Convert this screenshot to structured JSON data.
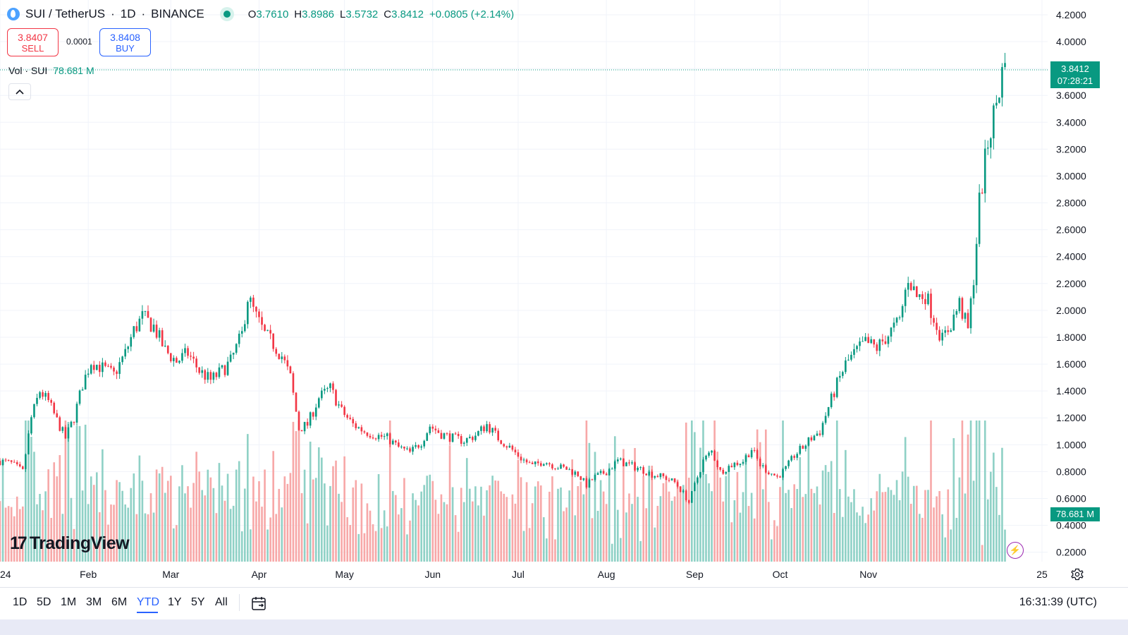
{
  "header": {
    "symbol": "SUI / TetherUS",
    "interval": "1D",
    "exchange": "BINANCE",
    "open": "3.7610",
    "high": "3.8986",
    "low": "3.5732",
    "close": "3.8412",
    "change": "+0.0805 (+2.14%)"
  },
  "trade": {
    "sell_price": "3.8407",
    "sell_label": "SELL",
    "spread": "0.0001",
    "buy_price": "3.8408",
    "buy_label": "BUY"
  },
  "volume": {
    "label": "Vol · SUI",
    "value": "78.681 M"
  },
  "price_tag": {
    "price": "3.8412",
    "countdown": "07:28:21"
  },
  "brand": "TradingView",
  "toolbar": {
    "ranges": [
      "1D",
      "5D",
      "1M",
      "3M",
      "6M",
      "YTD",
      "1Y",
      "5Y",
      "All"
    ],
    "active_range": "YTD",
    "time": "16:31:39 (UTC)"
  },
  "colors": {
    "up": "#089981",
    "down": "#f23645",
    "vol_up": "#8fd1c6",
    "vol_down": "#f7a8a8",
    "accent": "#2962ff"
  },
  "chart_data": {
    "type": "candlestick",
    "y_axis": {
      "side": "right",
      "ylim": [
        0.13,
        4.31
      ],
      "ticks": [
        "4.2000",
        "4.0000",
        "3.8000",
        "3.6000",
        "3.4000",
        "3.2000",
        "3.0000",
        "2.8000",
        "2.6000",
        "2.4000",
        "2.2000",
        "2.0000",
        "1.8000",
        "1.6000",
        "1.4000",
        "1.2000",
        "1.0000",
        "0.8000",
        "0.6000",
        "0.4000",
        "0.2000"
      ]
    },
    "x_axis": {
      "labels": [
        "2024",
        "Feb",
        "Mar",
        "Apr",
        "May",
        "Jun",
        "Jul",
        "Aug",
        "Sep",
        "Oct",
        "Nov",
        "25"
      ],
      "range": [
        "2024-01-01",
        "2025-01-01"
      ]
    },
    "grid": true,
    "last_price": 3.8412,
    "last_volume": "78.681 M",
    "price_path": [
      [
        "01-01",
        0.88
      ],
      [
        "01-05",
        0.86
      ],
      [
        "01-09",
        0.8
      ],
      [
        "01-12",
        1.2
      ],
      [
        "01-15",
        1.4
      ],
      [
        "01-18",
        1.32
      ],
      [
        "01-21",
        1.18
      ],
      [
        "01-24",
        1.05
      ],
      [
        "01-27",
        1.2
      ],
      [
        "01-30",
        1.45
      ],
      [
        "02-02",
        1.62
      ],
      [
        "02-06",
        1.57
      ],
      [
        "02-10",
        1.52
      ],
      [
        "02-14",
        1.68
      ],
      [
        "02-17",
        1.85
      ],
      [
        "02-20",
        1.95
      ],
      [
        "02-24",
        1.88
      ],
      [
        "02-28",
        1.7
      ],
      [
        "03-03",
        1.62
      ],
      [
        "03-07",
        1.68
      ],
      [
        "03-11",
        1.55
      ],
      [
        "03-15",
        1.48
      ],
      [
        "03-19",
        1.55
      ],
      [
        "03-22",
        1.62
      ],
      [
        "03-26",
        1.82
      ],
      [
        "03-28",
        2.1
      ],
      [
        "03-31",
        1.95
      ],
      [
        "04-03",
        1.82
      ],
      [
        "04-06",
        1.75
      ],
      [
        "04-09",
        1.66
      ],
      [
        "04-12",
        1.5
      ],
      [
        "04-15",
        1.12
      ],
      [
        "04-18",
        1.15
      ],
      [
        "04-22",
        1.35
      ],
      [
        "04-26",
        1.42
      ],
      [
        "04-30",
        1.25
      ],
      [
        "05-04",
        1.15
      ],
      [
        "05-08",
        1.1
      ],
      [
        "05-12",
        1.07
      ],
      [
        "05-16",
        1.05
      ],
      [
        "05-20",
        0.98
      ],
      [
        "05-24",
        0.94
      ],
      [
        "05-28",
        1.02
      ],
      [
        "05-31",
        1.14
      ],
      [
        "06-04",
        1.08
      ],
      [
        "06-08",
        1.05
      ],
      [
        "06-12",
        1.03
      ],
      [
        "06-16",
        1.07
      ],
      [
        "06-20",
        1.15
      ],
      [
        "06-24",
        1.05
      ],
      [
        "06-28",
        0.98
      ],
      [
        "07-02",
        0.9
      ],
      [
        "07-06",
        0.84
      ],
      [
        "07-10",
        0.88
      ],
      [
        "07-14",
        0.84
      ],
      [
        "07-18",
        0.82
      ],
      [
        "07-22",
        0.78
      ],
      [
        "07-25",
        0.7
      ],
      [
        "07-28",
        0.76
      ],
      [
        "08-01",
        0.8
      ],
      [
        "08-05",
        0.88
      ],
      [
        "08-09",
        0.85
      ],
      [
        "08-13",
        0.82
      ],
      [
        "08-17",
        0.78
      ],
      [
        "08-21",
        0.76
      ],
      [
        "08-25",
        0.72
      ],
      [
        "08-28",
        0.64
      ],
      [
        "08-30",
        0.57
      ],
      [
        "09-01",
        0.7
      ],
      [
        "09-04",
        0.88
      ],
      [
        "09-07",
        0.95
      ],
      [
        "09-10",
        0.8
      ],
      [
        "09-14",
        0.85
      ],
      [
        "09-18",
        0.88
      ],
      [
        "09-21",
        0.97
      ],
      [
        "09-24",
        0.85
      ],
      [
        "09-27",
        0.8
      ],
      [
        "09-30",
        0.76
      ],
      [
        "10-03",
        0.82
      ],
      [
        "10-06",
        0.92
      ],
      [
        "10-09",
        0.98
      ],
      [
        "10-12",
        1.05
      ],
      [
        "10-15",
        1.1
      ],
      [
        "10-18",
        1.28
      ],
      [
        "10-21",
        1.45
      ],
      [
        "10-24",
        1.6
      ],
      [
        "10-28",
        1.7
      ],
      [
        "10-31",
        1.76
      ],
      [
        "11-04",
        1.72
      ],
      [
        "11-08",
        1.82
      ],
      [
        "11-12",
        1.92
      ],
      [
        "11-15",
        2.25
      ],
      [
        "11-18",
        2.1
      ],
      [
        "11-21",
        2.12
      ],
      [
        "11-24",
        1.95
      ],
      [
        "11-27",
        1.78
      ],
      [
        "11-30",
        1.9
      ],
      [
        "12-03",
        2.05
      ],
      [
        "12-06",
        1.85
      ],
      [
        "12-08",
        2.25
      ],
      [
        "12-10",
        2.8
      ],
      [
        "12-13",
        3.25
      ],
      [
        "12-16",
        3.55
      ],
      [
        "12-18",
        3.76
      ],
      [
        "12-19",
        3.84
      ]
    ]
  }
}
